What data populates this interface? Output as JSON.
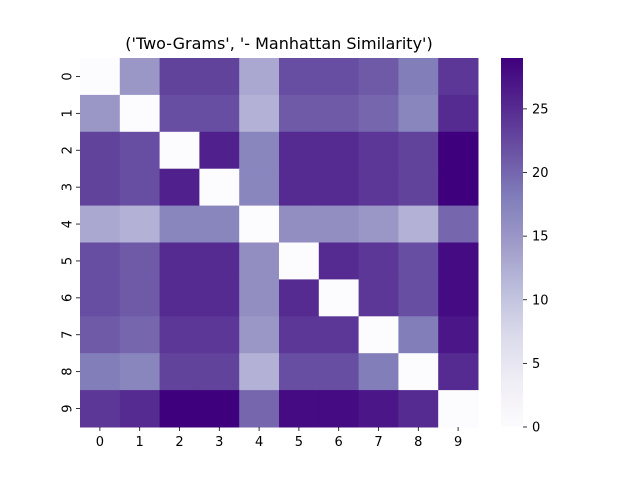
{
  "chart_data": {
    "type": "heatmap",
    "title": "('Two-Grams', '- Manhattan Similarity')",
    "xlabel": "",
    "ylabel": "",
    "x_tick_labels": [
      "0",
      "1",
      "2",
      "3",
      "4",
      "5",
      "6",
      "7",
      "8",
      "9"
    ],
    "y_tick_labels": [
      "0",
      "1",
      "2",
      "3",
      "4",
      "5",
      "6",
      "7",
      "8",
      "9"
    ],
    "colormap": "Purples",
    "vmin": 0,
    "vmax": 29,
    "colorbar_ticks": [
      0,
      5,
      10,
      15,
      20,
      25
    ],
    "values": [
      [
        0,
        15,
        23,
        23,
        13,
        22,
        22,
        21,
        18,
        24
      ],
      [
        15,
        0,
        22,
        22,
        12,
        21,
        21,
        20,
        17,
        25
      ],
      [
        23,
        22,
        0,
        26,
        17,
        25,
        25,
        24,
        23,
        29
      ],
      [
        23,
        22,
        26,
        0,
        17,
        25,
        25,
        24,
        23,
        29
      ],
      [
        13,
        12,
        17,
        17,
        0,
        16,
        16,
        15,
        12,
        20
      ],
      [
        22,
        21,
        25,
        25,
        16,
        0,
        25,
        24,
        22,
        28
      ],
      [
        22,
        21,
        25,
        25,
        16,
        25,
        0,
        24,
        22,
        28
      ],
      [
        21,
        20,
        24,
        24,
        15,
        24,
        24,
        0,
        18,
        27
      ],
      [
        18,
        17,
        23,
        23,
        12,
        22,
        22,
        18,
        0,
        25
      ],
      [
        24,
        25,
        29,
        29,
        20,
        28,
        28,
        27,
        25,
        0
      ]
    ]
  }
}
